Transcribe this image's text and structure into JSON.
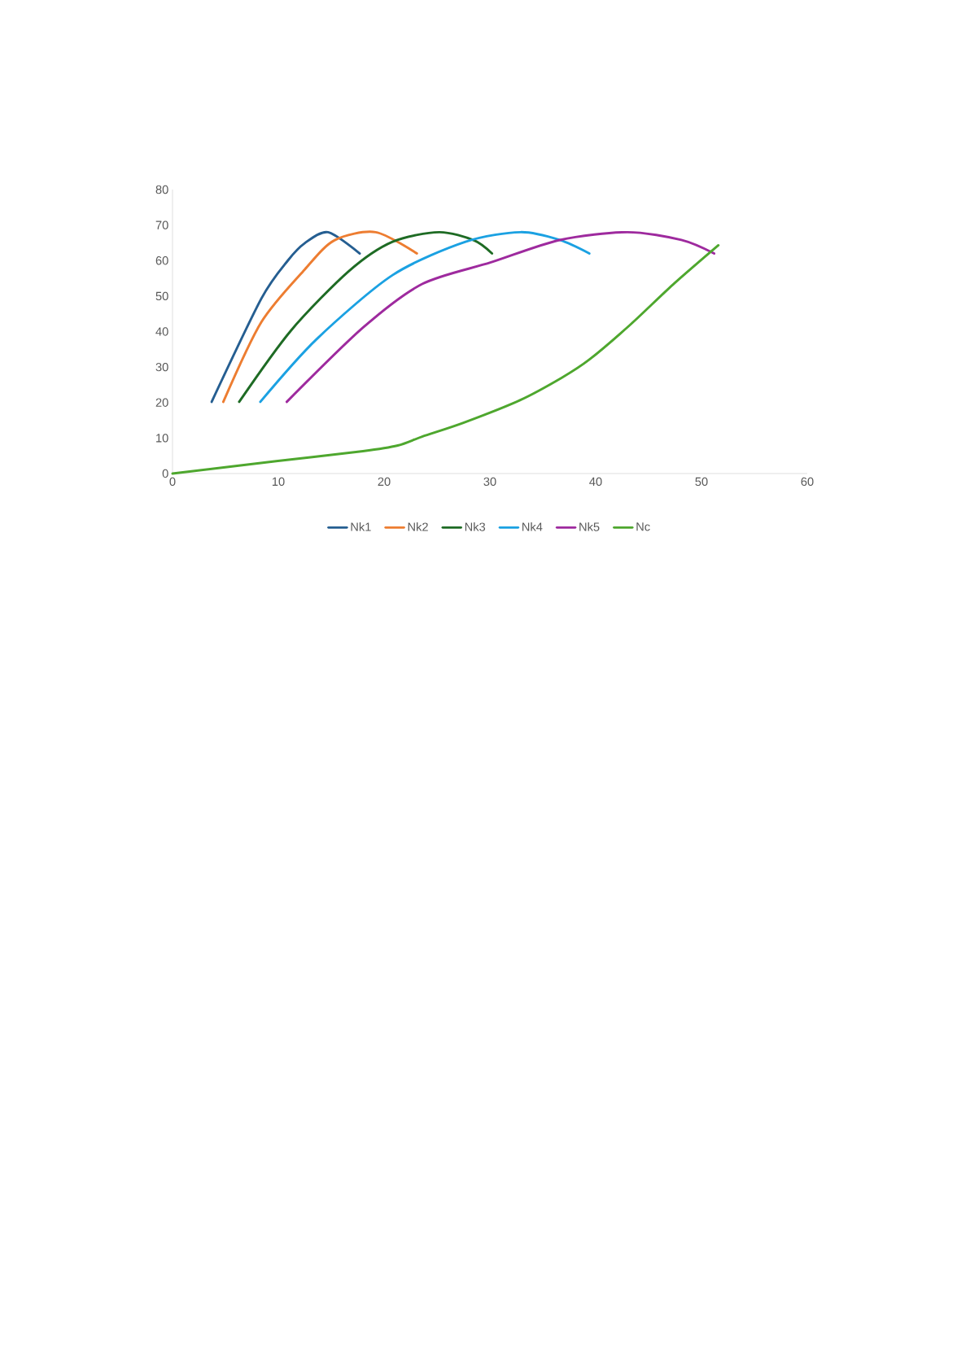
{
  "chart_data": {
    "type": "line",
    "xlim": [
      0,
      60
    ],
    "ylim": [
      0,
      80
    ],
    "xticks": [
      0,
      10,
      20,
      30,
      40,
      50,
      60
    ],
    "yticks": [
      0,
      10,
      20,
      30,
      40,
      50,
      60,
      70,
      80
    ],
    "legend": "bottom",
    "series": [
      {
        "name": "Nk1",
        "color": "#255e91",
        "x": [
          3.7,
          8.4,
          10.9,
          12.5,
          14.7,
          17.7
        ],
        "values": [
          20.2,
          49.3,
          60,
          64.9,
          68,
          62
        ]
      },
      {
        "name": "Nk2",
        "color": "#ed7d31",
        "x": [
          4.8,
          8.4,
          12.5,
          15.3,
          19.2,
          23.1
        ],
        "values": [
          20.2,
          42.7,
          57.5,
          65.7,
          68,
          62
        ]
      },
      {
        "name": "Nk3",
        "color": "#1e6b24",
        "x": [
          6.3,
          11.2,
          16.7,
          20.8,
          25.2,
          28.5,
          30.2
        ],
        "values": [
          20.2,
          40.3,
          57.1,
          65.3,
          68,
          65.7,
          62
        ]
      },
      {
        "name": "Nk4",
        "color": "#1ba1e2",
        "x": [
          8.3,
          13.6,
          20.8,
          27.7,
          32.9,
          36.6,
          39.4
        ],
        "values": [
          20.2,
          37.8,
          55.9,
          65.3,
          68,
          65.8,
          62
        ]
      },
      {
        "name": "Nk5",
        "color": "#9e2a9e",
        "x": [
          10.8,
          18.0,
          23.6,
          30.1,
          36.6,
          43.0,
          48.1,
          51.2
        ],
        "values": [
          20.2,
          41.1,
          53.4,
          59.5,
          65.8,
          68,
          65.8,
          62
        ]
      },
      {
        "name": "Nc",
        "color": "#4ea72e",
        "x": [
          0,
          9.8,
          18.0,
          21.3,
          23.6,
          27.5,
          32.8,
          36.8,
          39.4,
          43.3,
          47.3,
          51.6
        ],
        "values": [
          0,
          3.5,
          6.3,
          7.9,
          10.4,
          14.3,
          20.6,
          27.0,
          32.1,
          42.0,
          53.2,
          64.3
        ]
      }
    ]
  }
}
